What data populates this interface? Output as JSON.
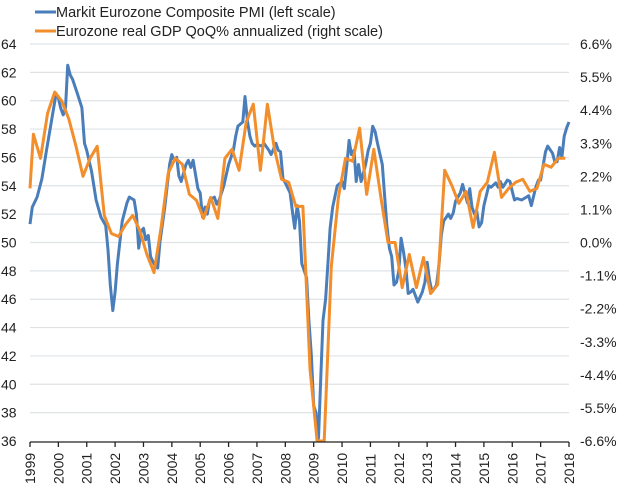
{
  "chart_data": {
    "type": "line",
    "title": "",
    "xlabel": "",
    "ylabel_left": "",
    "ylabel_right": "",
    "x_range": [
      1999,
      2018
    ],
    "ylim_left": [
      36,
      64
    ],
    "ylim_right": [
      -6.6,
      6.6
    ],
    "grid": true,
    "legend_position": "top-left",
    "left_ticks": [
      "64",
      "62",
      "60",
      "58",
      "56",
      "54",
      "52",
      "50",
      "48",
      "46",
      "44",
      "42",
      "40",
      "38",
      "36"
    ],
    "right_ticks": [
      "6.6%",
      "5.5%",
      "4.4%",
      "3.3%",
      "2.2%",
      "1.1%",
      "0.0%",
      "-1.1%",
      "-2.2%",
      "-3.3%",
      "-4.4%",
      "-5.5%",
      "-6.6%"
    ],
    "x_ticks": [
      "1999",
      "2000",
      "2001",
      "2002",
      "2003",
      "2004",
      "2005",
      "2006",
      "2007",
      "2008",
      "2009",
      "2010",
      "2011",
      "2012",
      "2013",
      "2014",
      "2015",
      "2016",
      "2017",
      "2018"
    ],
    "series": [
      {
        "name": "Markit Eurozone Composite PMI (left scale)",
        "axis": "left",
        "color": "#4a7ebb",
        "points": [
          [
            1999.0,
            51.3
          ],
          [
            1999.08,
            52.5
          ],
          [
            1999.25,
            53.2
          ],
          [
            1999.42,
            54.5
          ],
          [
            1999.58,
            56.5
          ],
          [
            1999.75,
            58.5
          ],
          [
            1999.92,
            60.5
          ],
          [
            2000.0,
            60.2
          ],
          [
            2000.08,
            59.5
          ],
          [
            2000.17,
            59.0
          ],
          [
            2000.25,
            59.5
          ],
          [
            2000.33,
            62.5
          ],
          [
            2000.42,
            61.8
          ],
          [
            2000.5,
            61.5
          ],
          [
            2000.67,
            60.5
          ],
          [
            2000.83,
            59.5
          ],
          [
            2000.92,
            57.0
          ],
          [
            2001.0,
            56.5
          ],
          [
            2001.17,
            55.0
          ],
          [
            2001.33,
            53.0
          ],
          [
            2001.5,
            51.8
          ],
          [
            2001.67,
            51.2
          ],
          [
            2001.75,
            49.5
          ],
          [
            2001.83,
            47.0
          ],
          [
            2001.92,
            45.2
          ],
          [
            2002.0,
            46.5
          ],
          [
            2002.08,
            48.5
          ],
          [
            2002.25,
            51.5
          ],
          [
            2002.42,
            52.8
          ],
          [
            2002.5,
            53.2
          ],
          [
            2002.67,
            53.0
          ],
          [
            2002.75,
            52.0
          ],
          [
            2002.83,
            49.6
          ],
          [
            2002.92,
            50.8
          ],
          [
            2003.0,
            51.0
          ],
          [
            2003.08,
            50.2
          ],
          [
            2003.17,
            50.5
          ],
          [
            2003.25,
            49.0
          ],
          [
            2003.42,
            48.3
          ],
          [
            2003.5,
            48.2
          ],
          [
            2003.58,
            50.0
          ],
          [
            2003.75,
            52.5
          ],
          [
            2003.92,
            55.5
          ],
          [
            2004.0,
            56.2
          ],
          [
            2004.08,
            55.8
          ],
          [
            2004.17,
            56.0
          ],
          [
            2004.25,
            54.7
          ],
          [
            2004.33,
            54.3
          ],
          [
            2004.5,
            55.5
          ],
          [
            2004.58,
            55.8
          ],
          [
            2004.67,
            55.3
          ],
          [
            2004.75,
            55.8
          ],
          [
            2004.92,
            53.8
          ],
          [
            2005.0,
            53.5
          ],
          [
            2005.08,
            51.8
          ],
          [
            2005.17,
            52.5
          ],
          [
            2005.25,
            52.0
          ],
          [
            2005.33,
            53.0
          ],
          [
            2005.5,
            53.2
          ],
          [
            2005.58,
            52.7
          ],
          [
            2005.67,
            53.0
          ],
          [
            2005.83,
            54.0
          ],
          [
            2006.0,
            55.5
          ],
          [
            2006.17,
            56.5
          ],
          [
            2006.25,
            57.5
          ],
          [
            2006.33,
            58.2
          ],
          [
            2006.5,
            58.5
          ],
          [
            2006.58,
            60.3
          ],
          [
            2006.67,
            58.5
          ],
          [
            2006.75,
            57.5
          ],
          [
            2006.83,
            57.0
          ],
          [
            2006.92,
            56.8
          ],
          [
            2007.0,
            56.9
          ],
          [
            2007.17,
            56.8
          ],
          [
            2007.25,
            57.0
          ],
          [
            2007.42,
            56.5
          ],
          [
            2007.5,
            56.2
          ],
          [
            2007.67,
            57.0
          ],
          [
            2007.75,
            56.5
          ],
          [
            2007.83,
            56.4
          ],
          [
            2007.92,
            54.5
          ],
          [
            2008.0,
            54.2
          ],
          [
            2008.17,
            53.5
          ],
          [
            2008.25,
            52.2
          ],
          [
            2008.33,
            51.0
          ],
          [
            2008.42,
            52.6
          ],
          [
            2008.5,
            51.5
          ],
          [
            2008.58,
            48.5
          ],
          [
            2008.67,
            48.0
          ],
          [
            2008.75,
            47.5
          ],
          [
            2008.83,
            44.5
          ],
          [
            2008.92,
            42.0
          ],
          [
            2009.0,
            38.5
          ],
          [
            2009.08,
            38.0
          ],
          [
            2009.17,
            36.2
          ],
          [
            2009.25,
            40.5
          ],
          [
            2009.33,
            44.5
          ],
          [
            2009.42,
            46.0
          ],
          [
            2009.5,
            48.5
          ],
          [
            2009.58,
            51.0
          ],
          [
            2009.67,
            52.5
          ],
          [
            2009.83,
            54.0
          ],
          [
            2010.0,
            54.3
          ],
          [
            2010.08,
            53.8
          ],
          [
            2010.17,
            55.5
          ],
          [
            2010.25,
            57.2
          ],
          [
            2010.33,
            56.2
          ],
          [
            2010.42,
            56.5
          ],
          [
            2010.5,
            54.3
          ],
          [
            2010.58,
            55.5
          ],
          [
            2010.67,
            54.3
          ],
          [
            2010.83,
            55.5
          ],
          [
            2010.92,
            56.5
          ],
          [
            2011.0,
            57.0
          ],
          [
            2011.08,
            58.2
          ],
          [
            2011.17,
            57.8
          ],
          [
            2011.25,
            57.0
          ],
          [
            2011.42,
            55.5
          ],
          [
            2011.5,
            53.3
          ],
          [
            2011.58,
            51.2
          ],
          [
            2011.67,
            49.6
          ],
          [
            2011.75,
            49.0
          ],
          [
            2011.83,
            47.0
          ],
          [
            2011.92,
            47.2
          ],
          [
            2012.0,
            48.0
          ],
          [
            2012.08,
            50.3
          ],
          [
            2012.17,
            49.3
          ],
          [
            2012.25,
            48.2
          ],
          [
            2012.33,
            46.4
          ],
          [
            2012.42,
            46.5
          ],
          [
            2012.5,
            46.7
          ],
          [
            2012.58,
            46.3
          ],
          [
            2012.67,
            45.8
          ],
          [
            2012.83,
            46.5
          ],
          [
            2012.92,
            47.2
          ],
          [
            2013.0,
            48.6
          ],
          [
            2013.08,
            47.4
          ],
          [
            2013.17,
            46.5
          ],
          [
            2013.33,
            47.0
          ],
          [
            2013.42,
            48.5
          ],
          [
            2013.5,
            50.5
          ],
          [
            2013.58,
            51.5
          ],
          [
            2013.75,
            52.0
          ],
          [
            2013.83,
            51.7
          ],
          [
            2013.92,
            52.1
          ],
          [
            2014.0,
            52.9
          ],
          [
            2014.17,
            53.5
          ],
          [
            2014.25,
            54.1
          ],
          [
            2014.33,
            53.5
          ],
          [
            2014.42,
            52.8
          ],
          [
            2014.5,
            53.8
          ],
          [
            2014.58,
            52.5
          ],
          [
            2014.67,
            52.0
          ],
          [
            2014.75,
            52.2
          ],
          [
            2014.83,
            51.1
          ],
          [
            2014.92,
            51.4
          ],
          [
            2015.0,
            52.6
          ],
          [
            2015.17,
            54.0
          ],
          [
            2015.25,
            53.9
          ],
          [
            2015.42,
            54.2
          ],
          [
            2015.5,
            53.9
          ],
          [
            2015.58,
            54.3
          ],
          [
            2015.67,
            53.9
          ],
          [
            2015.83,
            54.4
          ],
          [
            2015.92,
            54.3
          ],
          [
            2016.0,
            53.6
          ],
          [
            2016.08,
            53.0
          ],
          [
            2016.17,
            53.1
          ],
          [
            2016.33,
            53.0
          ],
          [
            2016.5,
            53.2
          ],
          [
            2016.58,
            53.3
          ],
          [
            2016.67,
            52.6
          ],
          [
            2016.83,
            53.9
          ],
          [
            2016.92,
            54.4
          ],
          [
            2017.0,
            54.4
          ],
          [
            2017.17,
            56.4
          ],
          [
            2017.25,
            56.8
          ],
          [
            2017.42,
            56.3
          ],
          [
            2017.5,
            55.7
          ],
          [
            2017.58,
            55.7
          ],
          [
            2017.67,
            56.7
          ],
          [
            2017.75,
            56.0
          ],
          [
            2017.83,
            57.5
          ],
          [
            2017.92,
            58.1
          ],
          [
            2018.0,
            58.5
          ]
        ]
      },
      {
        "name": "Eurozone real GDP QoQ% annualized (right scale)",
        "axis": "right",
        "color": "#f28e2b",
        "points": [
          [
            1999.0,
            1.8
          ],
          [
            1999.12,
            3.6
          ],
          [
            1999.37,
            2.8
          ],
          [
            1999.62,
            4.3
          ],
          [
            1999.87,
            5.0
          ],
          [
            2000.12,
            4.7
          ],
          [
            2000.37,
            4.1
          ],
          [
            2000.62,
            3.2
          ],
          [
            2000.87,
            2.2
          ],
          [
            2001.12,
            2.8
          ],
          [
            2001.37,
            3.2
          ],
          [
            2001.62,
            0.9
          ],
          [
            2001.87,
            0.3
          ],
          [
            2002.12,
            0.2
          ],
          [
            2002.37,
            0.6
          ],
          [
            2002.62,
            0.9
          ],
          [
            2002.87,
            0.4
          ],
          [
            2003.12,
            -0.4
          ],
          [
            2003.37,
            -1.0
          ],
          [
            2003.62,
            0.5
          ],
          [
            2003.87,
            2.3
          ],
          [
            2004.12,
            2.8
          ],
          [
            2004.37,
            2.6
          ],
          [
            2004.62,
            1.6
          ],
          [
            2004.87,
            1.4
          ],
          [
            2005.12,
            0.8
          ],
          [
            2005.37,
            1.5
          ],
          [
            2005.62,
            0.8
          ],
          [
            2005.87,
            2.8
          ],
          [
            2006.12,
            3.1
          ],
          [
            2006.37,
            2.4
          ],
          [
            2006.62,
            4.0
          ],
          [
            2006.87,
            4.6
          ],
          [
            2007.12,
            2.4
          ],
          [
            2007.37,
            4.6
          ],
          [
            2007.62,
            3.1
          ],
          [
            2007.87,
            2.1
          ],
          [
            2008.12,
            2.0
          ],
          [
            2008.37,
            1.2
          ],
          [
            2008.62,
            1.2
          ],
          [
            2008.87,
            -4.2
          ],
          [
            2009.12,
            -6.6
          ],
          [
            2009.37,
            -6.6
          ],
          [
            2009.62,
            -0.8
          ],
          [
            2009.87,
            1.5
          ],
          [
            2010.12,
            2.8
          ],
          [
            2010.37,
            2.7
          ],
          [
            2010.62,
            3.8
          ],
          [
            2010.87,
            1.6
          ],
          [
            2011.12,
            3.1
          ],
          [
            2011.37,
            1.5
          ],
          [
            2011.62,
            0.0
          ],
          [
            2011.87,
            0.0
          ],
          [
            2012.12,
            -1.5
          ],
          [
            2012.37,
            -0.4
          ],
          [
            2012.62,
            -1.5
          ],
          [
            2012.87,
            -0.5
          ],
          [
            2013.12,
            -1.7
          ],
          [
            2013.37,
            -1.4
          ],
          [
            2013.62,
            2.4
          ],
          [
            2013.87,
            1.9
          ],
          [
            2014.12,
            1.3
          ],
          [
            2014.37,
            1.7
          ],
          [
            2014.62,
            0.5
          ],
          [
            2014.87,
            1.7
          ],
          [
            2015.12,
            2.0
          ],
          [
            2015.37,
            3.0
          ],
          [
            2015.62,
            1.5
          ],
          [
            2015.87,
            1.8
          ],
          [
            2016.12,
            2.0
          ],
          [
            2016.37,
            2.1
          ],
          [
            2016.62,
            1.7
          ],
          [
            2016.87,
            1.8
          ],
          [
            2017.12,
            2.6
          ],
          [
            2017.37,
            2.5
          ],
          [
            2017.62,
            2.8
          ],
          [
            2017.87,
            2.8
          ]
        ]
      }
    ]
  }
}
